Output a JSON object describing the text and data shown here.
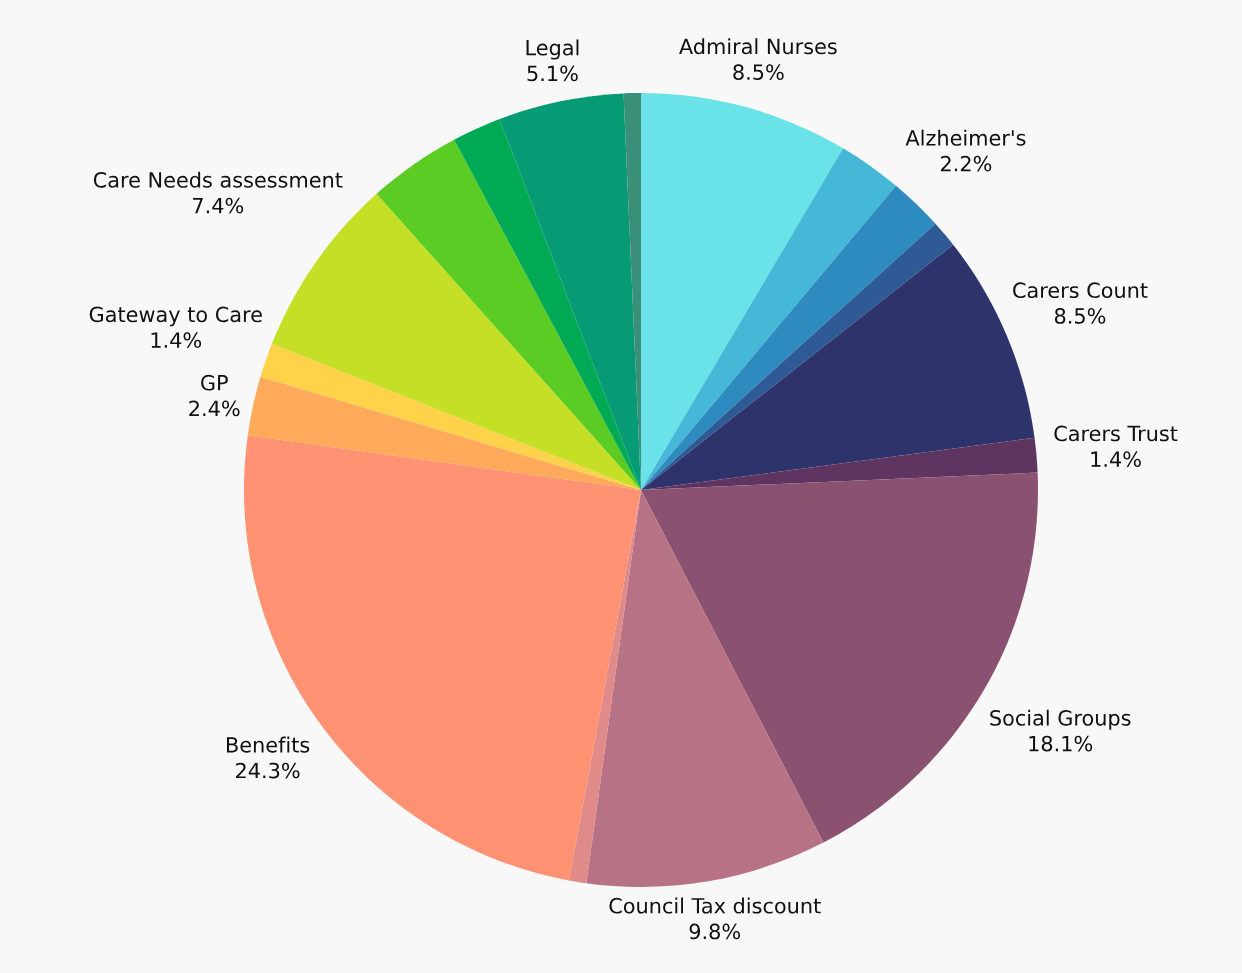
{
  "chart_data": {
    "type": "pie",
    "categories": [
      "Admiral Nurses",
      null,
      "Alzheimer's",
      null,
      "Carers Count",
      "Carers Trust",
      "Social Groups",
      "Council Tax discount",
      null,
      "Benefits",
      "GP",
      "Gateway to Care",
      "Care Needs assessment",
      null,
      null,
      "Legal",
      null
    ],
    "values": [
      8.5,
      2.6,
      2.2,
      1.1,
      8.5,
      1.4,
      18.1,
      9.8,
      0.7,
      24.3,
      2.4,
      1.4,
      7.4,
      3.8,
      2.0,
      5.1,
      0.7
    ],
    "value_labels": [
      "8.5%",
      null,
      "2.2%",
      null,
      "8.5%",
      "1.4%",
      "18.1%",
      "9.8%",
      null,
      "24.3%",
      "2.4%",
      "1.4%",
      "7.4%",
      null,
      null,
      "5.1%",
      null
    ],
    "colors": [
      "#6ae3e8",
      "#45b8d8",
      "#2e8bbf",
      "#2e5a95",
      "#2f336b",
      "#5e3560",
      "#8a5270",
      "#b87286",
      "#e08a8a",
      "#ff9272",
      "#ffaa5a",
      "#ffd24a",
      "#c5df26",
      "#5acc23",
      "#00aa55",
      "#069a75",
      "#3a8f79"
    ]
  }
}
